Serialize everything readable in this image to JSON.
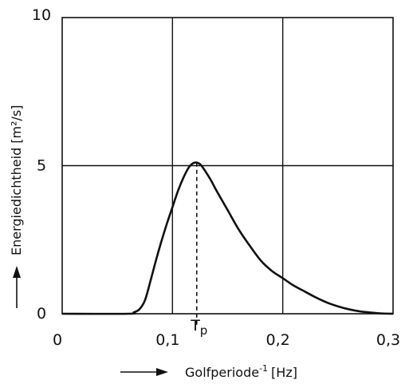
{
  "chart_data": {
    "type": "line",
    "title": "",
    "xlabel": "Golfperiode",
    "xlabel_sup": "-1",
    "xlabel_unit": "[Hz]",
    "ylabel": "Energiedichtheid [m²/s]",
    "xlim": [
      0,
      0.3
    ],
    "ylim": [
      0,
      10
    ],
    "x_ticks": [
      0,
      0.1,
      0.2,
      0.3
    ],
    "x_tick_labels": [
      "0",
      "0,1",
      "0,2",
      "0,3"
    ],
    "y_ticks": [
      0,
      5,
      10
    ],
    "y_tick_labels": [
      "0",
      "5",
      "10"
    ],
    "grid_x": [
      0.1,
      0.2
    ],
    "grid_y": [
      5
    ],
    "grid": true,
    "peak_marker": {
      "label": "T",
      "subscript": "p",
      "x": 0.122,
      "y": 5.1
    },
    "series": [
      {
        "x": [
          0,
          0.06,
          0.065,
          0.07,
          0.075,
          0.08,
          0.085,
          0.09,
          0.095,
          0.1,
          0.105,
          0.11,
          0.115,
          0.12,
          0.125,
          0.13,
          0.135,
          0.14,
          0.15,
          0.16,
          0.17,
          0.18,
          0.19,
          0.2,
          0.21,
          0.22,
          0.23,
          0.24,
          0.25,
          0.26,
          0.27,
          0.28,
          0.29,
          0.3
        ],
        "y": [
          0,
          0,
          0.05,
          0.15,
          0.45,
          1.1,
          1.8,
          2.45,
          3.05,
          3.6,
          4.15,
          4.6,
          4.95,
          5.1,
          5.05,
          4.8,
          4.5,
          4.15,
          3.5,
          2.85,
          2.3,
          1.8,
          1.45,
          1.2,
          0.95,
          0.75,
          0.55,
          0.38,
          0.25,
          0.15,
          0.08,
          0.04,
          0.01,
          0
        ]
      }
    ]
  }
}
